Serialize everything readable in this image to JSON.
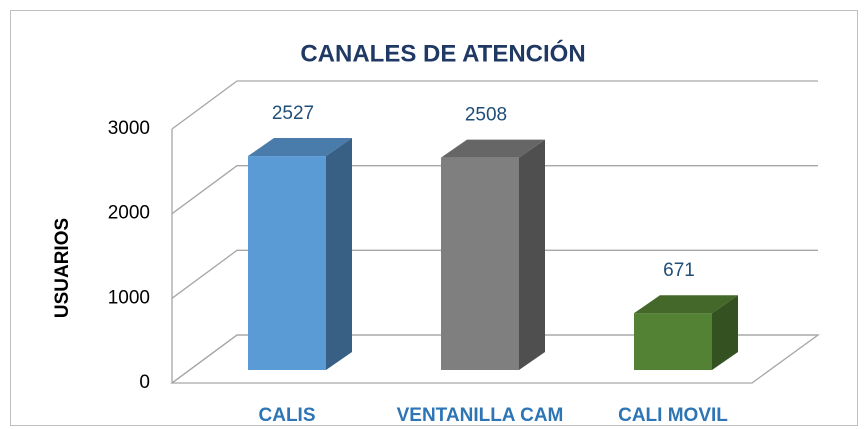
{
  "chart_data": {
    "type": "bar3d",
    "title": "CANALES DE ATENCIÓN",
    "y_label": "USUARIOS",
    "categories": [
      "CALIS",
      "VENTANILLA CAM",
      "CALI MOVIL"
    ],
    "values": [
      2527,
      2508,
      671
    ],
    "colors": [
      "#5b9bd5",
      "#7f7f7f",
      "#548235"
    ],
    "ylim": [
      0,
      3000
    ],
    "yticks": [
      0,
      1000,
      2000,
      3000
    ],
    "grid": true
  }
}
